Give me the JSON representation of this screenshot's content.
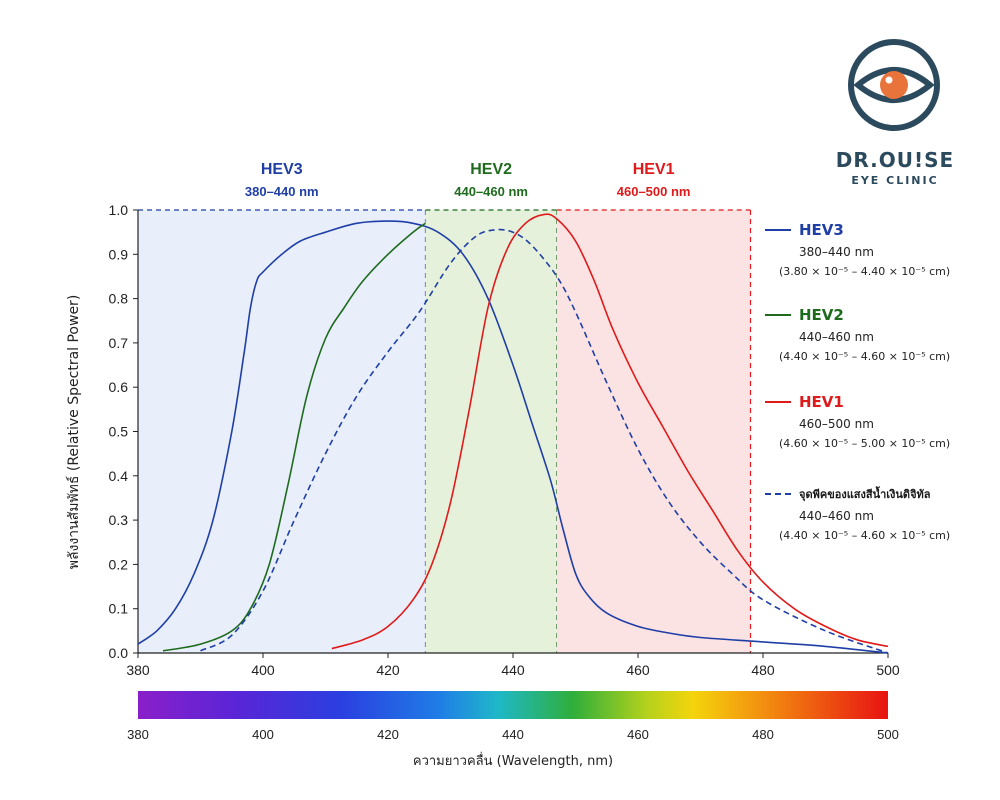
{
  "logo": {
    "name": "DR.OU!SE",
    "subtitle": "EYE CLINIC",
    "colors": {
      "ring": "#2c4a5e",
      "pupil": "#e8743b"
    }
  },
  "chart_data": {
    "type": "line",
    "ylabel": "พลังงานสัมพัทธ์ (Relative Spectral Power)",
    "xlabel": "ความยาวคลื่น (Wavelength, nm)",
    "xlim": [
      380,
      500
    ],
    "ylim": [
      0,
      1.0
    ],
    "x_ticks": [
      "380",
      "400",
      "420",
      "440",
      "460",
      "480",
      "500"
    ],
    "y_ticks": [
      "0.0",
      "0.1",
      "0.2",
      "0.3",
      "0.4",
      "0.5",
      "0.6",
      "0.7",
      "0.8",
      "0.9",
      "1.0"
    ],
    "bands": [
      {
        "name": "HEV3",
        "range_label": "380–440 nm",
        "from": 380,
        "to": 426,
        "fill": "#e8eefa",
        "color": "#1f3fa6"
      },
      {
        "name": "HEV2",
        "range_label": "440–460 nm",
        "from": 426,
        "to": 447,
        "fill": "#e6f1dc",
        "color": "#1e6b1e"
      },
      {
        "name": "HEV1",
        "range_label": "460–500 nm",
        "from": 447,
        "to": 478,
        "fill": "#fbe3e3",
        "color": "#e01a1a"
      }
    ],
    "series": [
      {
        "name": "HEV3",
        "color": "#1f3fa6",
        "style": "solid",
        "x": [
          380,
          383,
          386,
          389,
          392,
          395,
          397,
          398,
          399,
          400,
          403,
          406,
          410,
          415,
          420,
          424,
          428,
          432,
          436,
          440,
          443,
          446,
          448,
          450,
          452,
          455,
          460,
          465,
          470,
          480,
          490,
          500
        ],
        "y": [
          0.02,
          0.05,
          0.1,
          0.18,
          0.3,
          0.5,
          0.68,
          0.78,
          0.84,
          0.86,
          0.9,
          0.93,
          0.95,
          0.97,
          0.975,
          0.97,
          0.95,
          0.9,
          0.8,
          0.65,
          0.52,
          0.39,
          0.28,
          0.18,
          0.13,
          0.09,
          0.06,
          0.045,
          0.035,
          0.025,
          0.015,
          0.0
        ]
      },
      {
        "name": "HEV2",
        "color": "#1e6b1e",
        "style": "solid",
        "x": [
          384,
          390,
          395,
          398,
          401,
          404,
          407,
          410,
          413,
          416,
          420,
          424,
          426
        ],
        "y": [
          0.005,
          0.02,
          0.05,
          0.1,
          0.2,
          0.38,
          0.58,
          0.71,
          0.78,
          0.84,
          0.9,
          0.95,
          0.97
        ]
      },
      {
        "name": "HEV1",
        "color": "#e01a1a",
        "style": "solid",
        "x": [
          411,
          416,
          420,
          424,
          427,
          430,
          433,
          436,
          439,
          442,
          445,
          447,
          450,
          453,
          456,
          460,
          464,
          468,
          472,
          476,
          480,
          485,
          490,
          495,
          500
        ],
        "y": [
          0.01,
          0.03,
          0.06,
          0.12,
          0.2,
          0.34,
          0.55,
          0.78,
          0.91,
          0.97,
          0.99,
          0.98,
          0.93,
          0.84,
          0.73,
          0.61,
          0.51,
          0.41,
          0.32,
          0.23,
          0.16,
          0.1,
          0.06,
          0.03,
          0.015
        ]
      },
      {
        "name": "จุดพีคของแสงสีน้ำเงินดิจิทัล",
        "color": "#1f3fa6",
        "style": "dashed",
        "x": [
          390,
          395,
          400,
          405,
          410,
          415,
          420,
          425,
          430,
          434,
          437,
          440,
          443,
          447,
          450,
          455,
          460,
          465,
          470,
          475,
          480,
          490,
          500
        ],
        "y": [
          0.005,
          0.04,
          0.14,
          0.3,
          0.45,
          0.58,
          0.68,
          0.77,
          0.88,
          0.94,
          0.955,
          0.95,
          0.92,
          0.85,
          0.77,
          0.61,
          0.46,
          0.34,
          0.25,
          0.18,
          0.12,
          0.05,
          0.0
        ]
      }
    ]
  },
  "legend": [
    {
      "name": "HEV3",
      "color": "#1f3fa6",
      "style": "solid",
      "range": "380–440 nm",
      "cm": "(3.80 × 10⁻⁵ – 4.40 × 10⁻⁵ cm)"
    },
    {
      "name": "HEV2",
      "color": "#1e6b1e",
      "style": "solid",
      "range": "440–460 nm",
      "cm": "(4.40 × 10⁻⁵ – 4.60 × 10⁻⁵ cm)"
    },
    {
      "name": "HEV1",
      "color": "#e01a1a",
      "style": "solid",
      "range": "460–500 nm",
      "cm": "(4.60 × 10⁻⁵ – 5.00 × 10⁻⁵ cm)"
    },
    {
      "name": "จุดพีคของแสงสีน้ำเงินดิจิทัล",
      "color": "#1f3fa6",
      "style": "dashed",
      "range": "440–460 nm",
      "cm": "(4.40 × 10⁻⁵ – 4.60 × 10⁻⁵ cm)"
    }
  ]
}
